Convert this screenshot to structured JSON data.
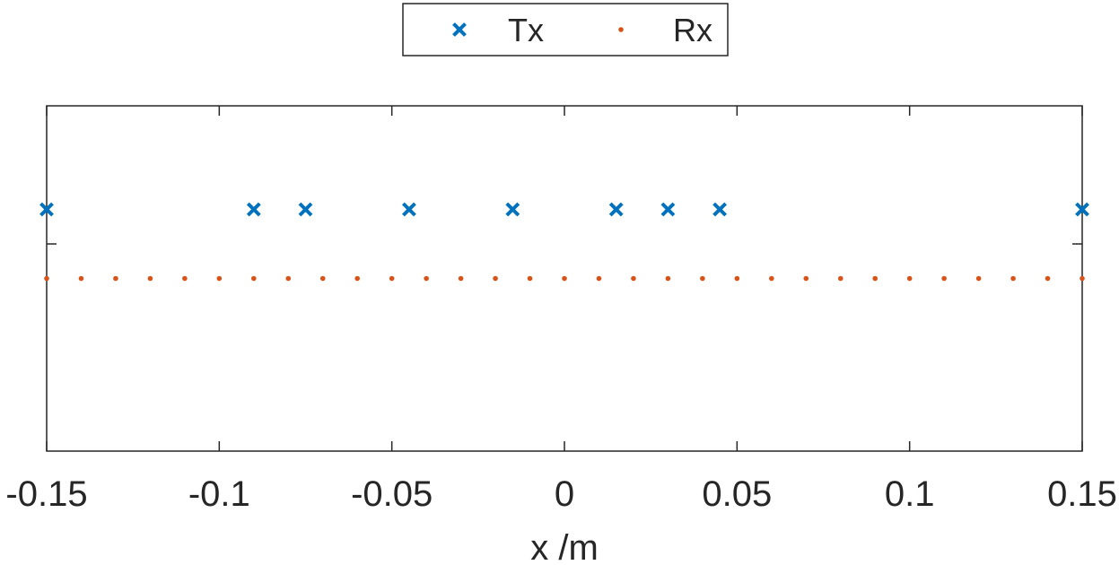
{
  "chart_data": {
    "type": "scatter",
    "title": "",
    "xlabel": "x /m",
    "ylabel": "",
    "xlim": [
      -0.15,
      0.15
    ],
    "ylim": [
      -1.5,
      1.0
    ],
    "xticks": [
      -0.15,
      -0.1,
      -0.05,
      0,
      0.05,
      0.1,
      0.15
    ],
    "xtick_labels": [
      "-0.15",
      "-0.1",
      "-0.05",
      "0",
      "0.05",
      "0.1",
      "0.15"
    ],
    "yticks": [
      0
    ],
    "ytick_labels": [
      ""
    ],
    "grid": false,
    "legend_position": "top-center",
    "series": [
      {
        "name": "Tx",
        "marker": "x",
        "color": "#0072BD",
        "x": [
          -0.15,
          -0.09,
          -0.075,
          -0.045,
          -0.015,
          0.015,
          0.03,
          0.045,
          0.15
        ],
        "y": [
          0.25,
          0.25,
          0.25,
          0.25,
          0.25,
          0.25,
          0.25,
          0.25,
          0.25
        ]
      },
      {
        "name": "Rx",
        "marker": ".",
        "color": "#D95319",
        "x": [
          -0.15,
          -0.14,
          -0.13,
          -0.12,
          -0.11,
          -0.1,
          -0.09,
          -0.08,
          -0.07,
          -0.06,
          -0.05,
          -0.04,
          -0.03,
          -0.02,
          -0.01,
          0,
          0.01,
          0.02,
          0.03,
          0.04,
          0.05,
          0.06,
          0.07,
          0.08,
          0.09,
          0.1,
          0.11,
          0.12,
          0.13,
          0.14,
          0.15
        ],
        "y": [
          -0.25,
          -0.25,
          -0.25,
          -0.25,
          -0.25,
          -0.25,
          -0.25,
          -0.25,
          -0.25,
          -0.25,
          -0.25,
          -0.25,
          -0.25,
          -0.25,
          -0.25,
          -0.25,
          -0.25,
          -0.25,
          -0.25,
          -0.25,
          -0.25,
          -0.25,
          -0.25,
          -0.25,
          -0.25,
          -0.25,
          -0.25,
          -0.25,
          -0.25,
          -0.25,
          -0.25
        ]
      }
    ]
  }
}
